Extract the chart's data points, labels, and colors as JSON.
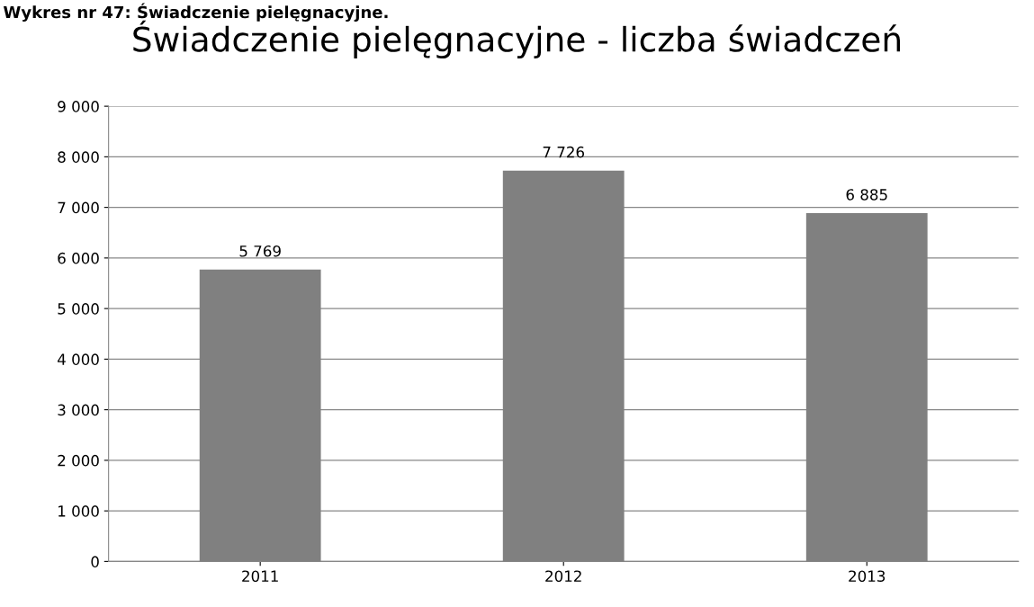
{
  "chart_data": {
    "type": "bar",
    "title": "Świadczenie pielęgnacyjne - liczba świadczeń",
    "annotations": [
      "Wykres nr 47: Świadczenie pielęgnacyjne."
    ],
    "categories": [
      "2011",
      "2012",
      "2013"
    ],
    "values": [
      5769,
      7726,
      6885
    ],
    "value_labels": [
      "5 769",
      "7 726",
      "6 885"
    ],
    "color": "#808080",
    "ylim": [
      0,
      9000
    ],
    "yticks": [
      {
        "value": 0,
        "label": "0"
      },
      {
        "value": 1000,
        "label": "1 000"
      },
      {
        "value": 2000,
        "label": "2 000"
      },
      {
        "value": 3000,
        "label": "3 000"
      },
      {
        "value": 4000,
        "label": "4 000"
      },
      {
        "value": 5000,
        "label": "5 000"
      },
      {
        "value": 6000,
        "label": "6 000"
      },
      {
        "value": 7000,
        "label": "7 000"
      },
      {
        "value": 8000,
        "label": "8 000"
      },
      {
        "value": 9000,
        "label": "9 000"
      }
    ],
    "grid": "y"
  }
}
